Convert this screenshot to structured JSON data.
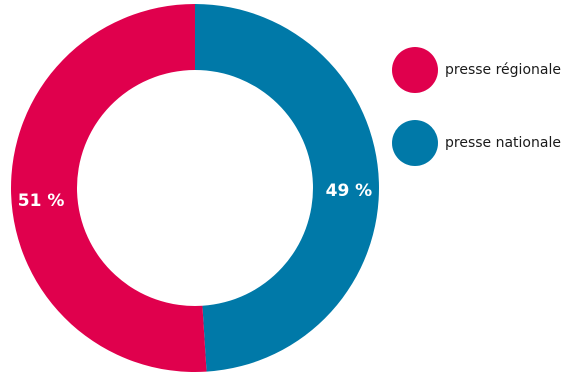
{
  "chart_data": {
    "type": "pie",
    "variant": "donut",
    "series": [
      {
        "name": "presse régionale",
        "value": 51,
        "label": "51 %",
        "color": "#e0004d"
      },
      {
        "name": "presse nationale",
        "value": 49,
        "label": "49 %",
        "color": "#0079a8"
      }
    ],
    "legend_position": "right"
  }
}
